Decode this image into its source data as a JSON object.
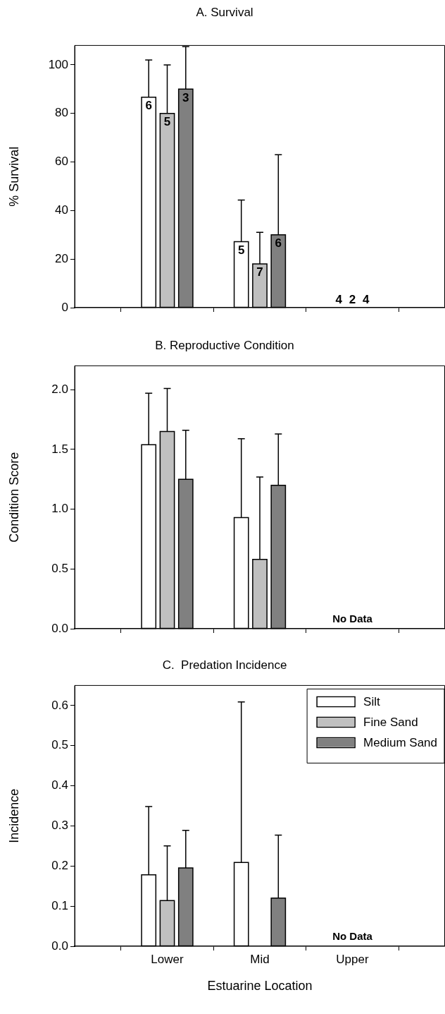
{
  "chart_data": [
    {
      "type": "bar",
      "title": "A. Survival",
      "ylabel": "% Survival",
      "categories": [
        "Lower",
        "Mid",
        "Upper"
      ],
      "series": [
        {
          "color": "#ffffff",
          "values": [
            86.7,
            27.2,
            0
          ],
          "errors": [
            [
              86.7,
              102
            ],
            [
              27.2,
              44.3
            ],
            null
          ]
        },
        {
          "color": "#c0c0c0",
          "values": [
            80,
            18,
            0
          ],
          "errors": [
            [
              80,
              100
            ],
            [
              18,
              31
            ],
            null
          ]
        },
        {
          "color": "#808080",
          "values": [
            90,
            30,
            0
          ],
          "errors": [
            [
              90,
              107.5
            ],
            [
              30,
              63
            ],
            null
          ]
        }
      ],
      "annotations": [
        {
          "text": "6",
          "x": "Lower",
          "y": 86.7
        },
        {
          "text": "5",
          "x": "Lower",
          "y": 80
        },
        {
          "text": "3",
          "x": "Lower",
          "y": 90
        },
        {
          "text": "5",
          "x": "Mid",
          "y": 27.2
        },
        {
          "text": "7",
          "x": "Mid",
          "y": 18
        },
        {
          "text": "6",
          "x": "Mid",
          "y": 30
        },
        {
          "text": "4",
          "x": "Upper",
          "y": 0
        },
        {
          "text": "2",
          "x": "Upper",
          "y": 0
        },
        {
          "text": "4",
          "x": "Upper",
          "y": 0
        }
      ],
      "ylim": [
        0,
        108
      ],
      "yticks": [
        0,
        20,
        40,
        60,
        80,
        100
      ],
      "tick_labels": "y",
      "legend": false
    },
    {
      "type": "bar",
      "title": "B. Reproductive Condition",
      "ylabel": "Condition Score",
      "categories": [
        "Lower",
        "Mid",
        "Upper"
      ],
      "series": [
        {
          "color": "#ffffff",
          "values": [
            1.54,
            0.93,
            null
          ],
          "errors": [
            [
              1.54,
              1.97
            ],
            [
              0.93,
              1.59
            ],
            null
          ]
        },
        {
          "color": "#c0c0c0",
          "values": [
            1.65,
            0.58,
            null
          ],
          "errors": [
            [
              1.65,
              2.01
            ],
            [
              0.58,
              1.27
            ],
            null
          ]
        },
        {
          "color": "#808080",
          "values": [
            1.25,
            1.2,
            null
          ],
          "errors": [
            [
              1.25,
              1.66
            ],
            [
              1.2,
              1.63
            ],
            null
          ]
        }
      ],
      "ylim": [
        0,
        2.2
      ],
      "yticks": [
        {
          "value": 0,
          "label": "0.0"
        },
        {
          "value": 0.5,
          "label": "0.5"
        },
        {
          "value": 1,
          "label": "1.0"
        },
        {
          "value": 1.5,
          "label": "1.5"
        },
        {
          "value": 2,
          "label": "2.0"
        }
      ],
      "annotations": [
        "No Data"
      ],
      "tick_labels": "y",
      "legend": false
    },
    {
      "type": "bar",
      "title": "C.  Predation Incidence",
      "xlabel": "Estuarine Location",
      "ylabel": "Incidence",
      "categories": [
        "Lower",
        "Mid",
        "Upper"
      ],
      "series": [
        {
          "name": "Silt",
          "color": "#ffffff",
          "values": [
            0.178,
            0.209,
            null
          ],
          "errors": [
            [
              0.178,
              0.348
            ],
            [
              0.209,
              0.609
            ],
            null
          ]
        },
        {
          "name": "Fine Sand",
          "color": "#c0c0c0",
          "values": [
            0.114,
            null,
            null
          ],
          "errors": [
            [
              0.114,
              0.25
            ],
            null,
            null
          ]
        },
        {
          "name": "Medium Sand",
          "color": "#808080",
          "values": [
            0.195,
            0.12,
            null
          ],
          "errors": [
            [
              0.195,
              0.289
            ],
            [
              0.12,
              0.277
            ],
            null
          ]
        }
      ],
      "ylim": [
        0,
        0.65
      ],
      "yticks": [
        {
          "value": 0,
          "label": "0.0"
        },
        {
          "value": 0.1,
          "label": "0.1"
        },
        {
          "value": 0.2,
          "label": "0.2"
        },
        {
          "value": 0.3,
          "label": "0.3"
        },
        {
          "value": 0.4,
          "label": "0.4"
        },
        {
          "value": 0.5,
          "label": "0.5"
        },
        {
          "value": 0.6,
          "label": "0.6"
        }
      ],
      "annotations": [
        "No Data"
      ],
      "legend": "top right"
    }
  ]
}
